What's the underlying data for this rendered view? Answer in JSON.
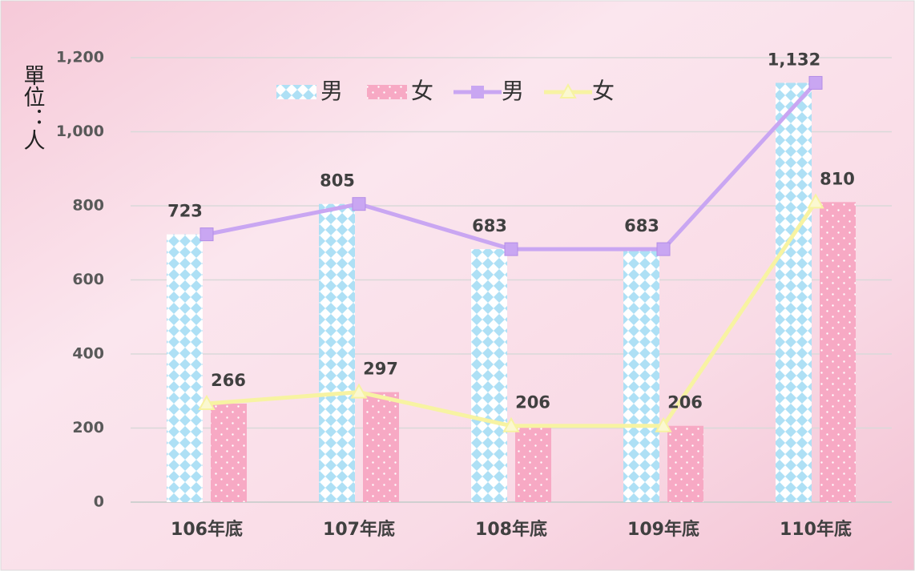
{
  "chart_data": {
    "type": "bar-line",
    "y_axis_title": "單位：人",
    "categories": [
      "106年底",
      "107年底",
      "108年底",
      "109年底",
      "110年底"
    ],
    "series": [
      {
        "name": "男",
        "type": "bar",
        "color": "#aee0f5",
        "values": [
          723,
          805,
          683,
          683,
          1132
        ]
      },
      {
        "name": "女",
        "type": "bar",
        "color": "#f7a9c4",
        "values": [
          266,
          297,
          206,
          206,
          810
        ]
      },
      {
        "name": "男",
        "type": "line",
        "color": "#c9a6f2",
        "values": [
          723,
          805,
          683,
          683,
          1132
        ],
        "value_labels": [
          "723",
          "805",
          "683",
          "683",
          "1,132"
        ]
      },
      {
        "name": "女",
        "type": "line",
        "color": "#f7f3a2",
        "values": [
          266,
          297,
          206,
          206,
          810
        ]
      }
    ],
    "ylim": [
      0,
      1200
    ],
    "yticks": [
      0,
      200,
      400,
      600,
      800,
      {
        "value": 1000,
        "label": "1,000"
      },
      {
        "value": 1200,
        "label": "1,200"
      }
    ],
    "grid": true,
    "legend": "top"
  }
}
